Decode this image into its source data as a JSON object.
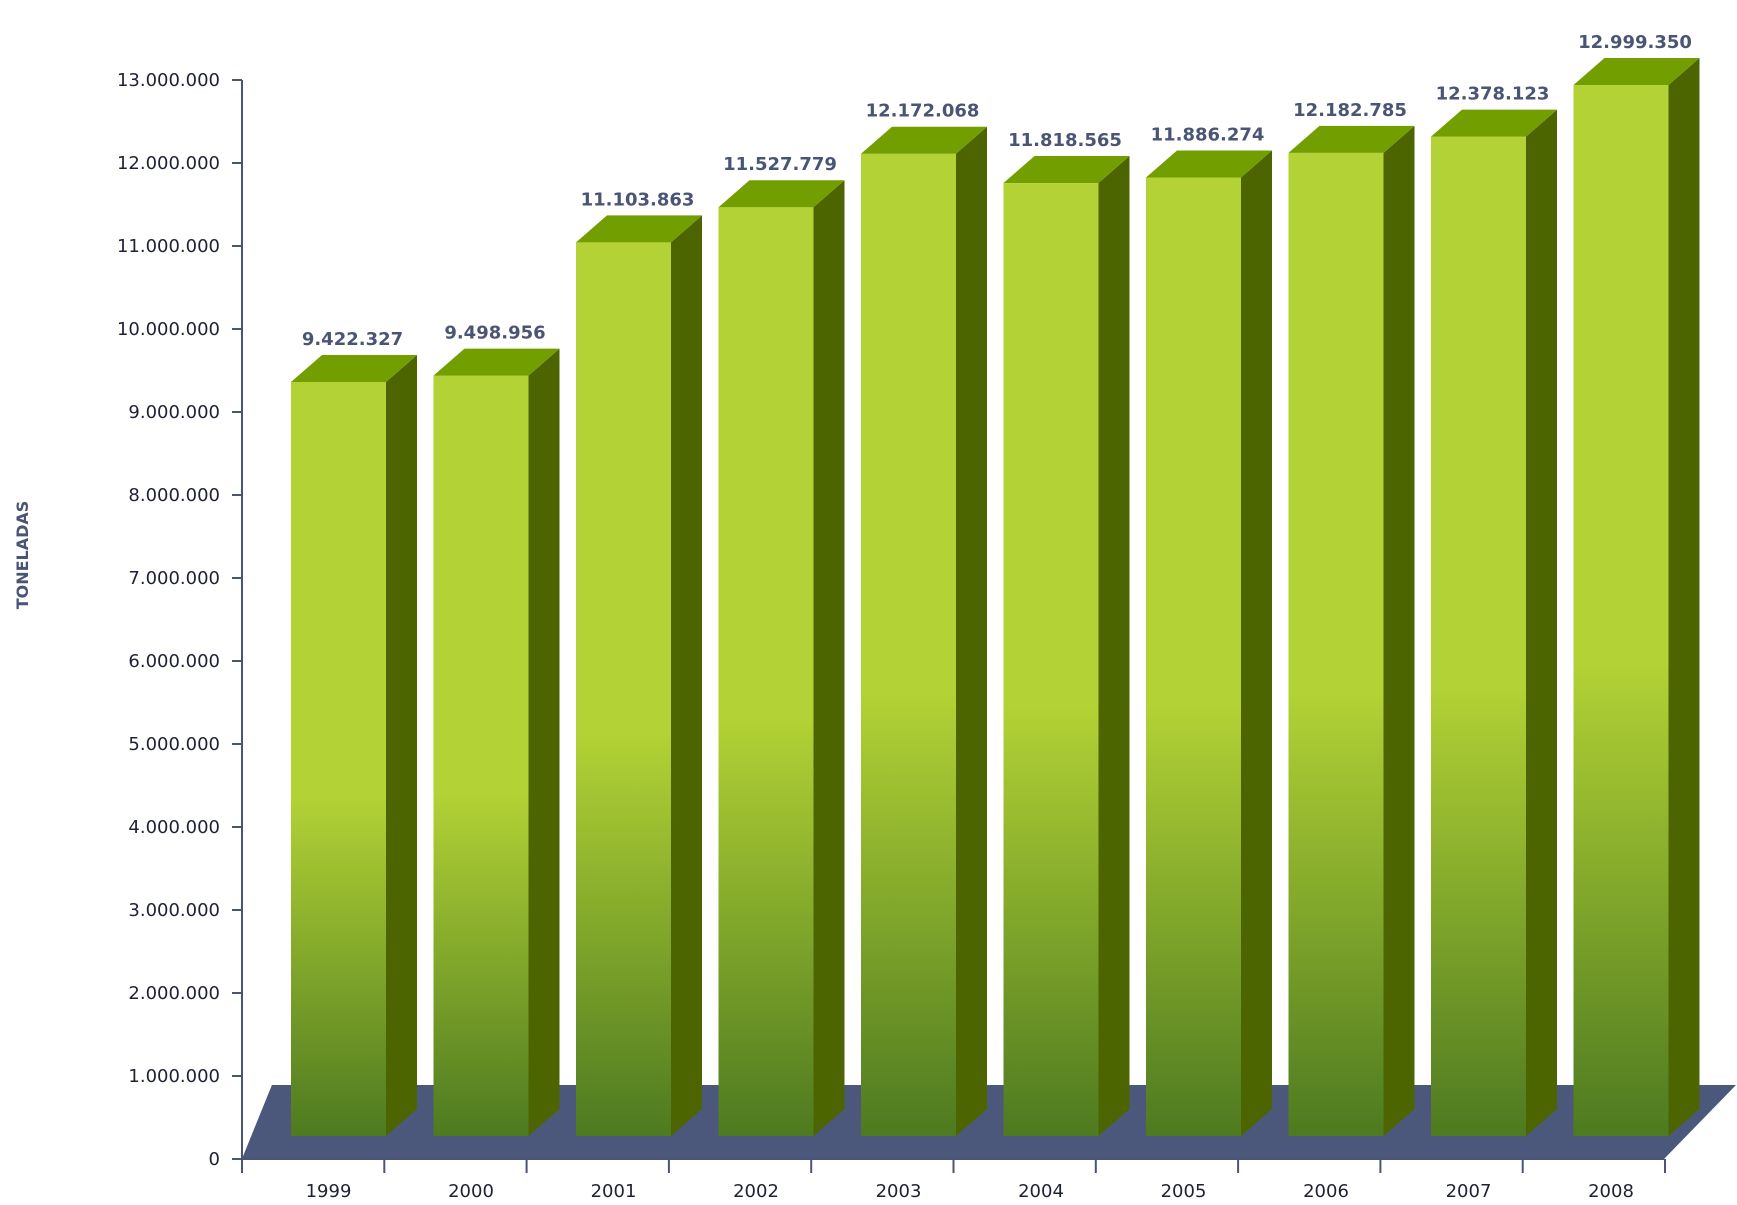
{
  "chart_data": {
    "type": "bar",
    "title": "",
    "xlabel": "",
    "ylabel": "TONELADAS",
    "ylim": [
      0,
      13000000
    ],
    "y_ticks": [
      0,
      1000000,
      2000000,
      3000000,
      4000000,
      5000000,
      6000000,
      7000000,
      8000000,
      9000000,
      10000000,
      11000000,
      12000000,
      13000000
    ],
    "y_tick_labels": [
      "0",
      "1.000.000",
      "2.000.000",
      "3.000.000",
      "4.000.000",
      "5.000.000",
      "6.000.000",
      "7.000.000",
      "8.000.000",
      "9.000.000",
      "10.000.000",
      "11.000.000",
      "12.000.000",
      "13.000.000"
    ],
    "categories": [
      "1999",
      "2000",
      "2001",
      "2002",
      "2003",
      "2004",
      "2005",
      "2006",
      "2007",
      "2008"
    ],
    "values": [
      9422327,
      9498956,
      11103863,
      11527779,
      12172068,
      11818565,
      11886274,
      12182785,
      12378123,
      12999350
    ],
    "value_labels": [
      "9.422.327",
      "9.498.956",
      "11.103.863",
      "11.527.779",
      "12.172.068",
      "11.818.565",
      "11.886.274",
      "12.182.785",
      "12.378.123",
      "12.999.350"
    ],
    "grid": false,
    "legend": "none",
    "style": "3d",
    "colors": {
      "bar_front_top": "#b2d235",
      "bar_front_bottom": "#4e7a20",
      "bar_top": "#739e00",
      "bar_side": "#4c6500",
      "floor": "#4b587c",
      "axis": "#4a5576",
      "value_label": "#4a5576"
    }
  }
}
